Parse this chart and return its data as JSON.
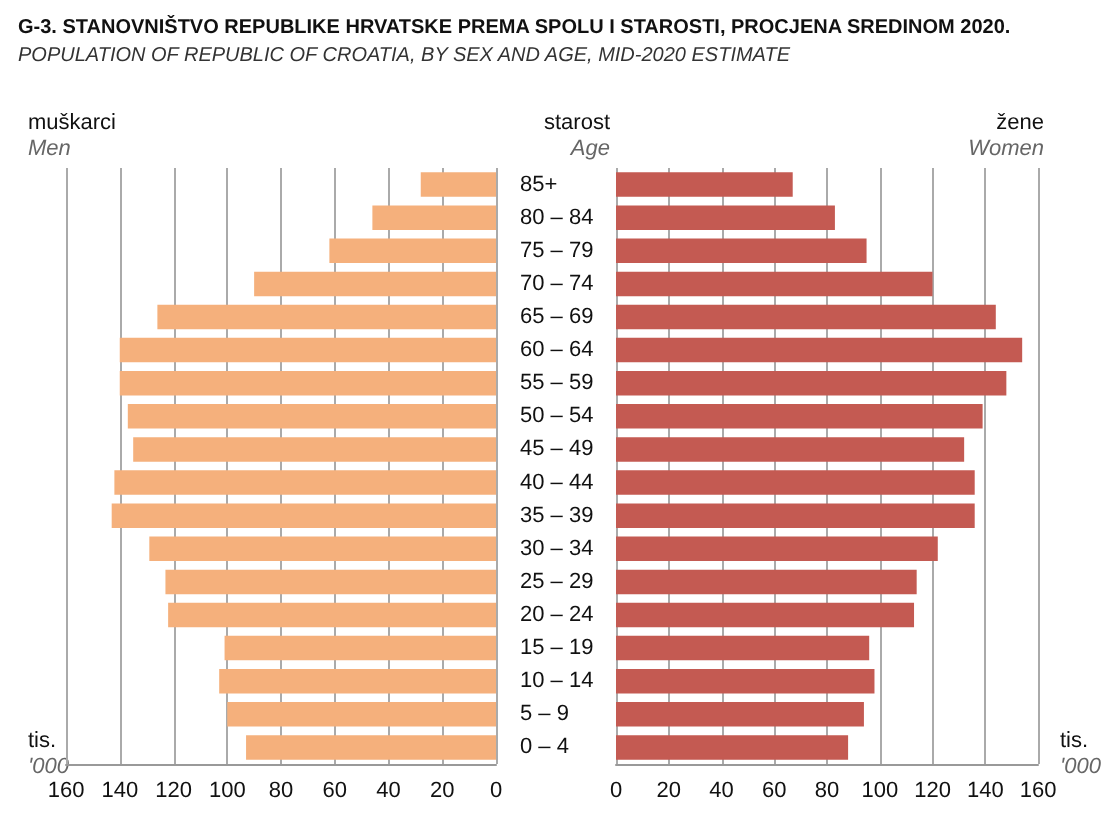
{
  "chart_data": [
    {
      "type": "bar",
      "orientation": "horizontal",
      "title": "G-3. STANOVNIŠTVO REPUBLIKE HRVATSKE PREMA SPOLU I STAROSTI, PROCJENA SREDINOM 2020.",
      "subtitle": "POPULATION OF REPUBLIC OF CROATIA, BY SEX AND AGE, MID-2020 ESTIMATE",
      "annotations": [
        "muškarci",
        "Men"
      ],
      "xlabel": "tis.\n'000",
      "ylabel": "starost\nAge",
      "categories": [
        "85+",
        "80 – 84",
        "75 – 79",
        "70 – 74",
        "65 – 69",
        "60 – 64",
        "55 – 59",
        "50 – 54",
        "45 – 49",
        "40 – 44",
        "35 – 39",
        "30 – 34",
        "25 – 29",
        "20 – 24",
        "15 – 19",
        "10 – 14",
        "5 – 9",
        "0 – 4"
      ],
      "values": [
        28,
        46,
        62,
        90,
        126,
        140,
        140,
        137,
        135,
        142,
        143,
        129,
        123,
        122,
        101,
        103,
        100,
        93
      ],
      "color": "#f5b07c",
      "xlim": [
        160,
        0
      ],
      "xticks": [
        160,
        140,
        120,
        100,
        80,
        60,
        40,
        20,
        0
      ],
      "grid": "x"
    },
    {
      "type": "bar",
      "orientation": "horizontal",
      "annotations": [
        "žene",
        "Women"
      ],
      "xlabel": "tis.\n'000",
      "categories": [
        null,
        null,
        null,
        null,
        null,
        null,
        null,
        null,
        null,
        null,
        null,
        null,
        null,
        null,
        null,
        null,
        null,
        null
      ],
      "values": [
        67,
        83,
        95,
        120,
        144,
        154,
        148,
        139,
        132,
        136,
        136,
        122,
        114,
        113,
        96,
        98,
        94,
        88
      ],
      "color": "#c45a52",
      "xlim": [
        0,
        160
      ],
      "xticks": [
        0,
        20,
        40,
        60,
        80,
        100,
        120,
        140,
        160
      ],
      "grid": "x",
      "tick_labels": "x"
    }
  ]
}
